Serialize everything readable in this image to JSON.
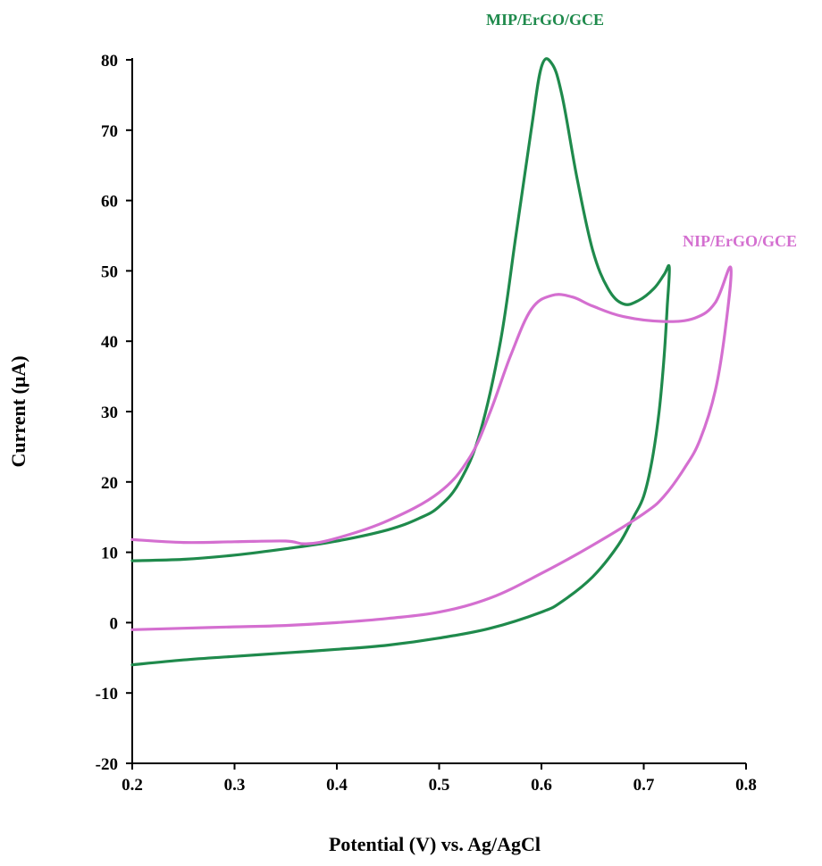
{
  "chart_data": {
    "type": "line",
    "title": "",
    "xlabel": "Potential (V) vs. Ag/AgCl",
    "ylabel": "Current (μA)",
    "xlim": [
      0.2,
      0.8
    ],
    "ylim": [
      -20,
      80
    ],
    "xticks": [
      0.2,
      0.3,
      0.4,
      0.5,
      0.6,
      0.7,
      0.8
    ],
    "yticks": [
      -20,
      -10,
      0,
      10,
      20,
      30,
      40,
      50,
      60,
      70,
      80
    ],
    "xtick_labels": [
      "0.2",
      "0.3",
      "0.4",
      "0.5",
      "0.6",
      "0.7",
      "0.8"
    ],
    "ytick_labels": [
      "-20",
      "-10",
      "0",
      "10",
      "20",
      "30",
      "40",
      "50",
      "60",
      "70",
      "80"
    ],
    "grid": false,
    "legend": "none",
    "series": [
      {
        "name": "MIP/ErGO/GCE",
        "color": "#1f8a4c",
        "points": [
          [
            0.2,
            8.8
          ],
          [
            0.25,
            9.0
          ],
          [
            0.3,
            9.6
          ],
          [
            0.35,
            10.5
          ],
          [
            0.4,
            11.6
          ],
          [
            0.45,
            13.2
          ],
          [
            0.48,
            14.8
          ],
          [
            0.5,
            16.5
          ],
          [
            0.52,
            20.0
          ],
          [
            0.54,
            27.0
          ],
          [
            0.56,
            40.0
          ],
          [
            0.575,
            55.0
          ],
          [
            0.59,
            70.0
          ],
          [
            0.6,
            79.0
          ],
          [
            0.61,
            79.5
          ],
          [
            0.62,
            75.0
          ],
          [
            0.635,
            63.0
          ],
          [
            0.65,
            53.0
          ],
          [
            0.665,
            47.5
          ],
          [
            0.68,
            45.3
          ],
          [
            0.695,
            45.8
          ],
          [
            0.71,
            47.5
          ],
          [
            0.72,
            49.5
          ],
          [
            0.725,
            50.5
          ],
          [
            0.723,
            45.0
          ],
          [
            0.72,
            38.0
          ],
          [
            0.715,
            30.0
          ],
          [
            0.708,
            23.0
          ],
          [
            0.7,
            18.0
          ],
          [
            0.69,
            15.0
          ],
          [
            0.675,
            11.0
          ],
          [
            0.65,
            6.5
          ],
          [
            0.62,
            3.0
          ],
          [
            0.6,
            1.5
          ],
          [
            0.55,
            -0.8
          ],
          [
            0.5,
            -2.2
          ],
          [
            0.45,
            -3.2
          ],
          [
            0.4,
            -3.8
          ],
          [
            0.35,
            -4.3
          ],
          [
            0.3,
            -4.8
          ],
          [
            0.25,
            -5.3
          ],
          [
            0.2,
            -6.0
          ]
        ]
      },
      {
        "name": "NIP/ErGO/GCE",
        "color": "#d46fd0",
        "points": [
          [
            0.2,
            11.8
          ],
          [
            0.25,
            11.4
          ],
          [
            0.3,
            11.5
          ],
          [
            0.35,
            11.6
          ],
          [
            0.37,
            11.2
          ],
          [
            0.4,
            12.0
          ],
          [
            0.45,
            14.5
          ],
          [
            0.5,
            18.5
          ],
          [
            0.53,
            23.5
          ],
          [
            0.55,
            30.0
          ],
          [
            0.57,
            38.0
          ],
          [
            0.59,
            44.5
          ],
          [
            0.61,
            46.5
          ],
          [
            0.63,
            46.3
          ],
          [
            0.65,
            45.0
          ],
          [
            0.68,
            43.5
          ],
          [
            0.72,
            42.8
          ],
          [
            0.75,
            43.3
          ],
          [
            0.77,
            45.5
          ],
          [
            0.785,
            50.5
          ],
          [
            0.78,
            42.0
          ],
          [
            0.77,
            33.0
          ],
          [
            0.755,
            26.0
          ],
          [
            0.74,
            22.0
          ],
          [
            0.72,
            18.0
          ],
          [
            0.7,
            15.5
          ],
          [
            0.65,
            11.0
          ],
          [
            0.6,
            7.0
          ],
          [
            0.55,
            3.5
          ],
          [
            0.5,
            1.5
          ],
          [
            0.45,
            0.6
          ],
          [
            0.4,
            0.0
          ],
          [
            0.35,
            -0.4
          ],
          [
            0.3,
            -0.6
          ],
          [
            0.25,
            -0.8
          ],
          [
            0.2,
            -1.0
          ]
        ]
      }
    ]
  }
}
